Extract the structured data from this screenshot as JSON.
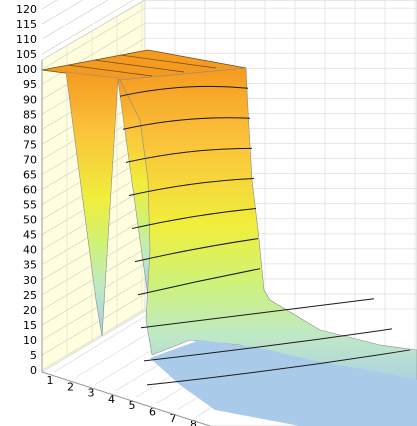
{
  "chart_data": {
    "type": "surface3d",
    "title": "",
    "xlabel": "",
    "ylabel": "",
    "zlabel": "",
    "z_ticks": [
      "0",
      "5",
      "10",
      "15",
      "20",
      "25",
      "30",
      "35",
      "40",
      "45",
      "50",
      "55",
      "60",
      "65",
      "70",
      "75",
      "80",
      "85",
      "90",
      "95",
      "100",
      "105",
      "110",
      "115",
      "120"
    ],
    "x_ticks": [
      "1",
      "2",
      "3",
      "4",
      "5",
      "6",
      "7",
      "8"
    ],
    "zlim": [
      0,
      120
    ],
    "grid": true,
    "legend": "none",
    "surface_profile": {
      "row": [
        1,
        2,
        3,
        4,
        5,
        6,
        7,
        8
      ],
      "front_ridge_z": [
        100,
        100,
        100,
        100,
        30,
        20,
        18,
        15
      ],
      "back_floor_z": [
        100,
        100,
        100,
        100,
        12,
        8,
        6,
        5
      ]
    },
    "colors": {
      "top": "#f59a20",
      "upper": "#fbc23a",
      "middle": "#f1ee3c",
      "lower": "#cef27a",
      "low": "#bfe9c6",
      "base": "#a9cbe9",
      "back_wall": "#ffffe0",
      "floor": "#ffffff"
    }
  }
}
